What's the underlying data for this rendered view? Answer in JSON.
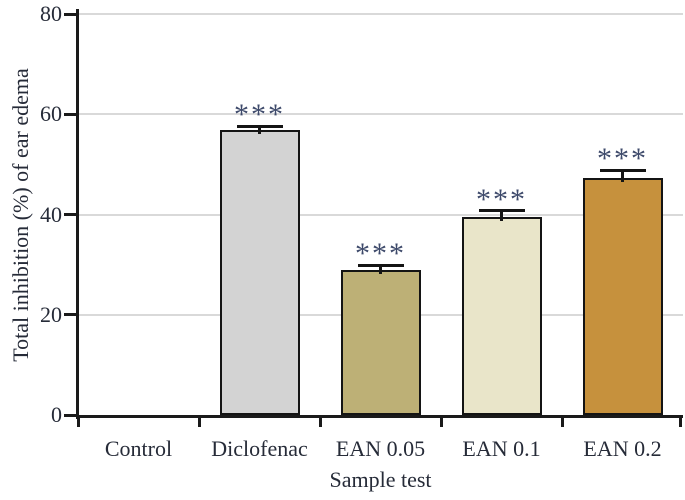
{
  "chart_data": {
    "type": "bar",
    "title": "",
    "xlabel": "Sample test",
    "ylabel": "Total inhibition (%) of ear edema",
    "categories": [
      "Control",
      "Diclofenac",
      "EAN 0.05",
      "EAN 0.1",
      "EAN 0.2"
    ],
    "values": [
      0,
      56.9,
      29,
      39.5,
      47.3
    ],
    "errors": [
      0,
      0.7,
      0.9,
      1.2,
      1.5
    ],
    "significance": [
      "",
      "***",
      "***",
      "***",
      "***"
    ],
    "bar_colors": [
      "#ffffff",
      "#d3d3d3",
      "#bdb076",
      "#e9e5c9",
      "#c6913d"
    ],
    "ylim": [
      0,
      80
    ],
    "yticks": [
      0,
      20,
      40,
      60,
      80
    ],
    "grid": true,
    "legend": "none",
    "colors": {
      "axis": "#1a1a1a",
      "grid": "#d9d9d9",
      "text": "#262b38",
      "significance": "#3e4a6b",
      "bar_border": "#141414",
      "background": "#ffffff"
    }
  }
}
